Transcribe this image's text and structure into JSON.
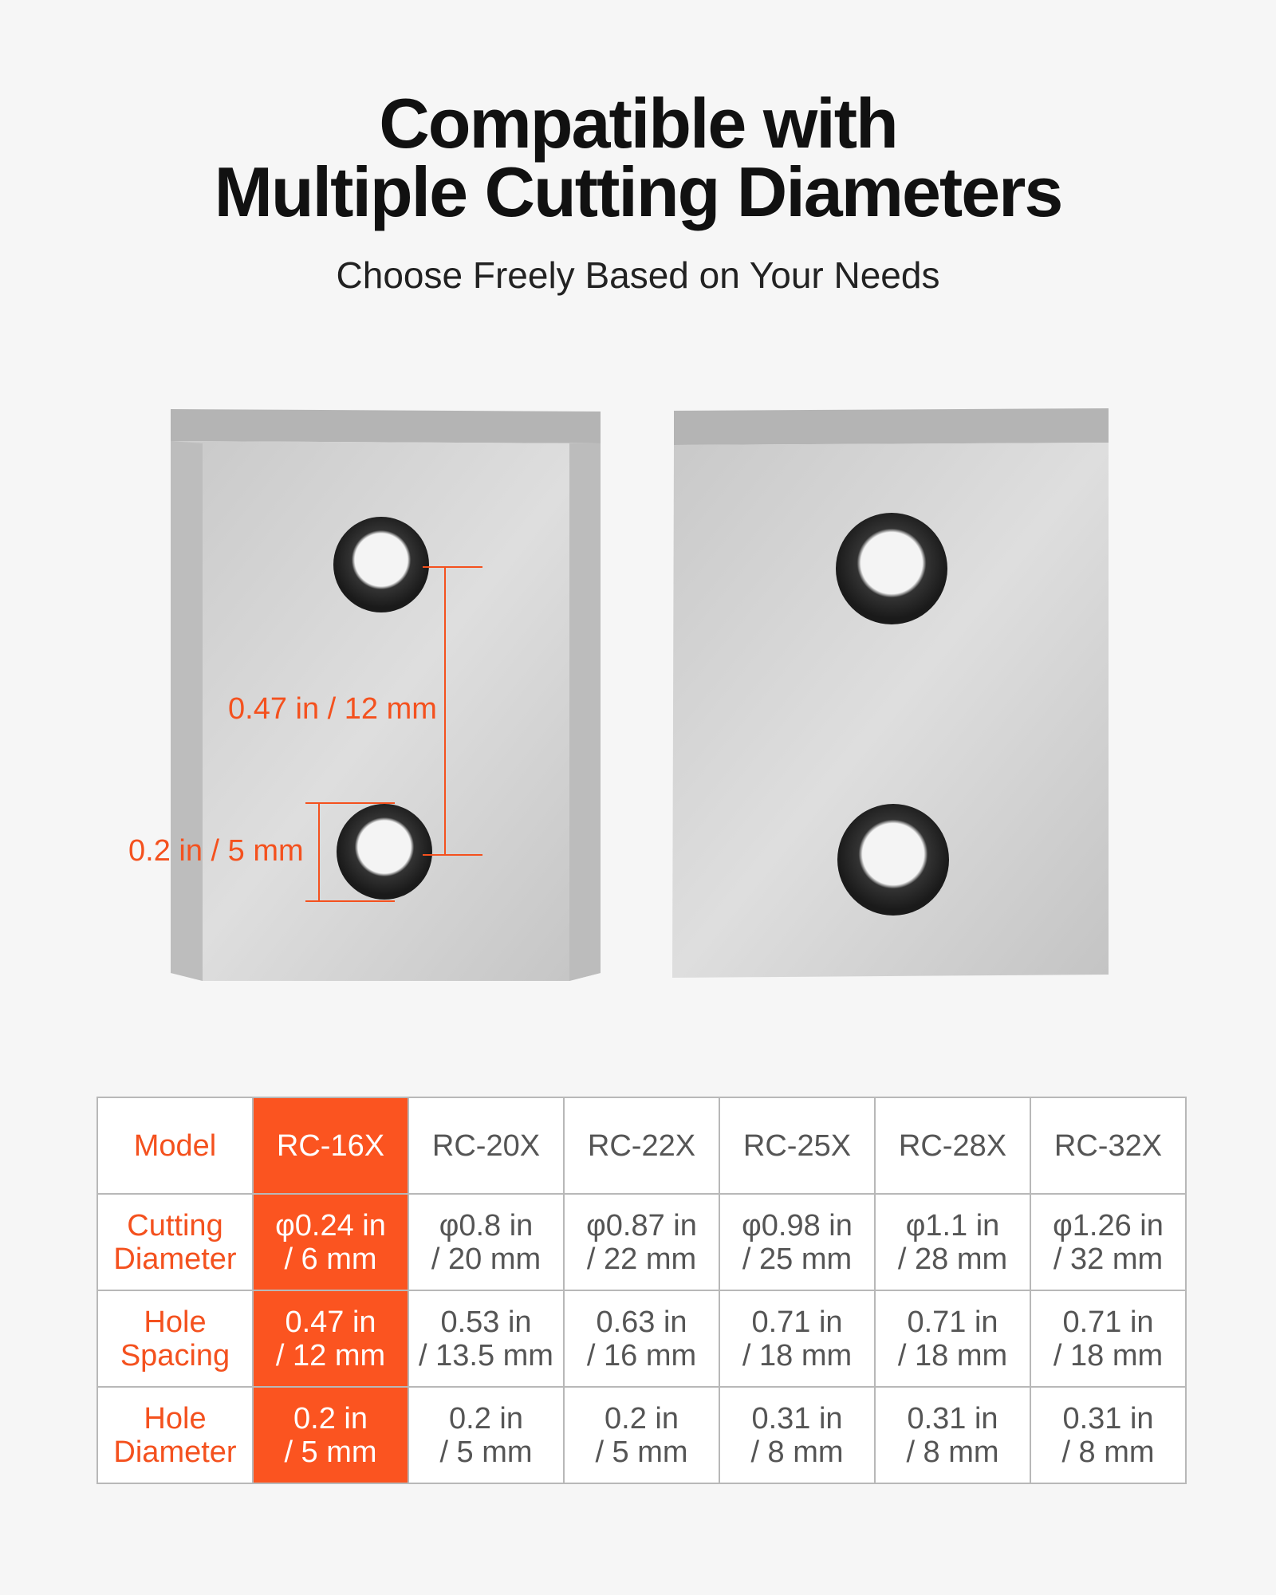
{
  "header": {
    "title_line1": "Compatible with",
    "title_line2": "Multiple Cutting Diameters",
    "subtitle": "Choose Freely Based on Your Needs"
  },
  "annotations": {
    "hole_spacing": "0.47 in / 12 mm",
    "hole_diameter": "0.2 in / 5 mm"
  },
  "colors": {
    "accent": "#fb5420",
    "label_text": "#f4511e",
    "cell_text": "#555555"
  },
  "table": {
    "highlighted_model": "RC-16X",
    "rows": [
      {
        "label": "Model",
        "cells": [
          [
            "RC-16X"
          ],
          [
            "RC-20X"
          ],
          [
            "RC-22X"
          ],
          [
            "RC-25X"
          ],
          [
            "RC-28X"
          ],
          [
            "RC-32X"
          ]
        ]
      },
      {
        "label": [
          "Cutting",
          "Diameter"
        ],
        "cells": [
          [
            "φ0.24 in",
            "/ 6 mm"
          ],
          [
            "φ0.8 in",
            "/ 20 mm"
          ],
          [
            "φ0.87 in",
            "/ 22 mm"
          ],
          [
            "φ0.98 in",
            "/ 25 mm"
          ],
          [
            "φ1.1 in",
            "/ 28 mm"
          ],
          [
            "φ1.26 in",
            "/ 32 mm"
          ]
        ]
      },
      {
        "label": [
          "Hole",
          "Spacing"
        ],
        "cells": [
          [
            "0.47 in",
            "/ 12 mm"
          ],
          [
            "0.53 in",
            "/ 13.5 mm"
          ],
          [
            "0.63 in",
            "/ 16 mm"
          ],
          [
            "0.71 in",
            "/ 18 mm"
          ],
          [
            "0.71 in",
            "/ 18 mm"
          ],
          [
            "0.71 in",
            "/ 18 mm"
          ]
        ]
      },
      {
        "label": [
          "Hole",
          "Diameter"
        ],
        "cells": [
          [
            "0.2 in",
            "/ 5 mm"
          ],
          [
            "0.2 in",
            "/ 5 mm"
          ],
          [
            "0.2 in",
            "/ 5 mm"
          ],
          [
            "0.31 in",
            "/ 8 mm"
          ],
          [
            "0.31 in",
            "/ 8 mm"
          ],
          [
            "0.31 in",
            "/ 8 mm"
          ]
        ]
      }
    ]
  }
}
